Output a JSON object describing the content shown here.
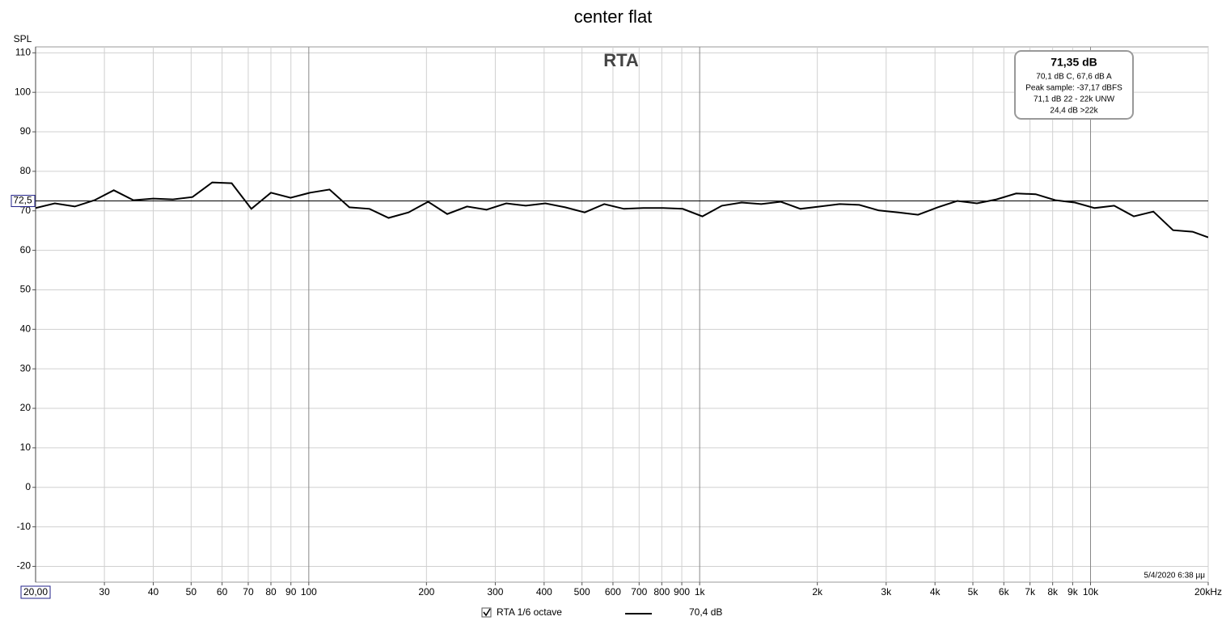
{
  "chart_data": {
    "type": "line",
    "title": "center flat",
    "y_label": "SPL",
    "annotation": "RTA",
    "info": [
      "71,35 dB",
      "70,1 dB C, 67,6 dB A",
      "Peak sample: -37,17 dBFS",
      "71,1 dB 22 - 22k UNW",
      "24,4 dB >22k"
    ],
    "timestamp": "5/4/2020 6:38 μμ",
    "x_scale": "log",
    "xlim": [
      20,
      20000
    ],
    "ylim": [
      -24,
      111.5
    ],
    "grid": true,
    "xticks": [
      30,
      40,
      50,
      60,
      70,
      80,
      90,
      100,
      200,
      300,
      400,
      500,
      600,
      700,
      800,
      900,
      {
        "value": 1000,
        "label": "1k"
      },
      {
        "value": 2000,
        "label": "2k"
      },
      {
        "value": 3000,
        "label": "3k"
      },
      {
        "value": 4000,
        "label": "4k"
      },
      {
        "value": 5000,
        "label": "5k"
      },
      {
        "value": 6000,
        "label": "6k"
      },
      {
        "value": 7000,
        "label": "7k"
      },
      {
        "value": 8000,
        "label": "8k"
      },
      {
        "value": 9000,
        "label": "9k"
      },
      {
        "value": 10000,
        "label": "10k"
      },
      {
        "value": 20000,
        "label": "20kHz"
      }
    ],
    "yticks": [
      -20,
      -10,
      0,
      10,
      20,
      30,
      40,
      50,
      60,
      70,
      80,
      90,
      100,
      110
    ],
    "cursor": {
      "x": {
        "value": 20,
        "label": "20,00"
      },
      "y": {
        "value": 72.5,
        "label": "72,5"
      }
    },
    "x": [
      20,
      22.4,
      25.2,
      28.3,
      31.7,
      35.6,
      40,
      44.9,
      50.4,
      56.6,
      63.5,
      71.3,
      80,
      89.8,
      100.8,
      113,
      127,
      143,
      160,
      180,
      202,
      226,
      254,
      285,
      320,
      359,
      403,
      453,
      508,
      570,
      640,
      718,
      806,
      905,
      1016,
      1140,
      1280,
      1437,
      1613,
      1810,
      2032,
      2281,
      2560,
      2874,
      3225,
      3620,
      4064,
      4561,
      5120,
      5747,
      6451,
      7241,
      8127,
      9123,
      10240,
      11494,
      12902,
      14482,
      16255,
      18246,
      20000
    ],
    "series": [
      {
        "name": "RTA 1/6 octave",
        "legend_value": "70,4 dB",
        "color": "#000000",
        "values": [
          70.7,
          71.9,
          71.1,
          72.7,
          75.2,
          72.7,
          73.1,
          72.9,
          73.5,
          77.2,
          77.0,
          70.5,
          74.6,
          73.3,
          74.6,
          75.4,
          70.9,
          70.5,
          68.2,
          69.6,
          72.3,
          69.2,
          71.1,
          70.3,
          71.9,
          71.3,
          71.9,
          70.9,
          69.6,
          71.7,
          70.5,
          70.7,
          70.7,
          70.5,
          68.6,
          71.3,
          72.1,
          71.7,
          72.3,
          70.5,
          71.1,
          71.7,
          71.5,
          70.1,
          69.6,
          69.0,
          70.9,
          72.5,
          71.9,
          72.9,
          74.4,
          74.2,
          72.7,
          72.1,
          70.7,
          71.3,
          68.6,
          69.8,
          65.1,
          64.7,
          63.3
        ]
      }
    ]
  }
}
